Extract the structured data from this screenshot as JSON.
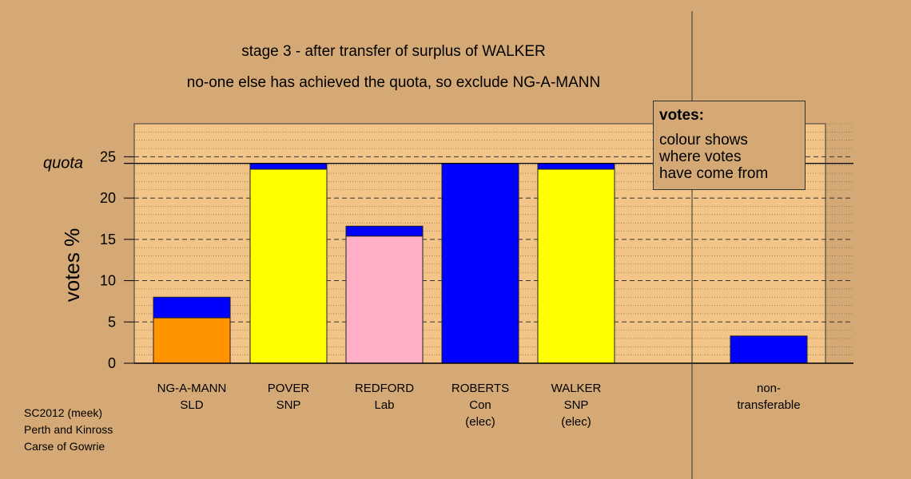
{
  "titles": {
    "line1": "stage 3 - after transfer of surplus of WALKER",
    "line2": "no-one else has achieved the quota, so exclude NG-A-MANN"
  },
  "legend": {
    "title": "votes:",
    "lines": [
      "colour shows",
      "where votes",
      "have come from"
    ]
  },
  "footer": [
    "SC2012 (meek)",
    "Perth and Kinross",
    "Carse of Gowrie"
  ],
  "colors": {
    "background": "#d4a976",
    "plot_background": "#f3c488",
    "SLD": "#ff9400",
    "SNP": "#ffff00",
    "Lab": "#ffb0c6",
    "Con": "#0000ff",
    "transfer": "#0000ff"
  },
  "chart_data": {
    "type": "bar",
    "stacked": true,
    "ylabel": "votes %",
    "ylim": [
      0,
      29
    ],
    "yticks": [
      0,
      5,
      10,
      15,
      20,
      25
    ],
    "quota": 24.2,
    "quota_label": "quota",
    "categories": [
      [
        "NG-A-MANN",
        "SLD"
      ],
      [
        "POVER",
        "SNP"
      ],
      [
        "REDFORD",
        "Lab"
      ],
      [
        "ROBERTS",
        "Con",
        "(elec)"
      ],
      [
        "WALKER",
        "SNP",
        "(elec)"
      ],
      [
        "non-",
        "transferable"
      ]
    ],
    "bars": [
      {
        "segments": [
          {
            "party": "SLD",
            "value": 5.5
          },
          {
            "party": "transfer",
            "value": 2.5
          }
        ]
      },
      {
        "segments": [
          {
            "party": "SNP",
            "value": 23.5
          },
          {
            "party": "transfer",
            "value": 0.7
          }
        ]
      },
      {
        "segments": [
          {
            "party": "Lab",
            "value": 15.4
          },
          {
            "party": "transfer",
            "value": 1.2
          }
        ]
      },
      {
        "segments": [
          {
            "party": "Con",
            "value": 24.2
          }
        ]
      },
      {
        "segments": [
          {
            "party": "SNP",
            "value": 23.5
          },
          {
            "party": "transfer",
            "value": 0.7
          }
        ]
      },
      {
        "segments": [
          {
            "party": "transfer",
            "value": 3.3
          }
        ]
      }
    ],
    "grid": true,
    "legend_position": "top-right"
  }
}
